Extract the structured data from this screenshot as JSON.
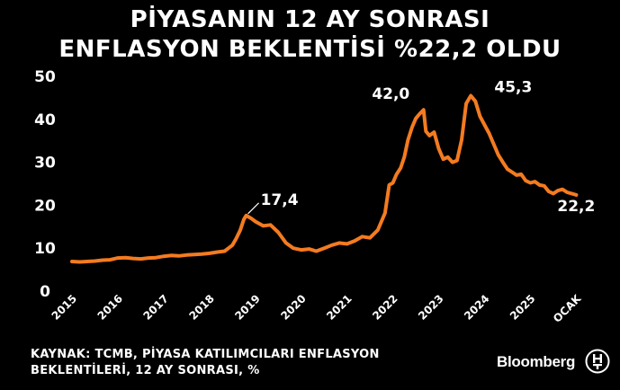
{
  "header": {
    "title_line1": "PİYASANIN 12 AY SONRASI",
    "title_line2": "ENFLASYON BEKLENTİSİ %22,2 OLDU"
  },
  "footer": {
    "source_line1": "KAYNAK: TCMB, PİYASA KATILIMCILARI ENFLASYON",
    "source_line2": "BEKLENTİLERİ, 12 AY SONRASI, %",
    "brand": "Bloomberg",
    "logo_icon": "ht-logo-icon"
  },
  "colors": {
    "background": "#000000",
    "line": "#f47b20",
    "text": "#ffffff"
  },
  "chart_data": {
    "type": "line",
    "title": "PİYASANIN 12 AY SONRASI ENFLASYON BEKLENTİSİ %22,2 OLDU",
    "xlabel": "",
    "ylabel": "",
    "ylim": [
      0,
      50
    ],
    "yticks": [
      0,
      10,
      20,
      30,
      40,
      50
    ],
    "xlim": [
      2015.0,
      2026.15
    ],
    "xticks": [
      {
        "value": 2015,
        "label": "2015"
      },
      {
        "value": 2016,
        "label": "2016"
      },
      {
        "value": 2017,
        "label": "2017"
      },
      {
        "value": 2018,
        "label": "2018"
      },
      {
        "value": 2019,
        "label": "2019"
      },
      {
        "value": 2020,
        "label": "2020"
      },
      {
        "value": 2021,
        "label": "2021"
      },
      {
        "value": 2022,
        "label": "2022"
      },
      {
        "value": 2023,
        "label": "2023"
      },
      {
        "value": 2024,
        "label": "2024"
      },
      {
        "value": 2025,
        "label": "2025"
      },
      {
        "value": 2026,
        "label": "OCAK"
      }
    ],
    "grid": false,
    "legend": "none",
    "annotations": [
      {
        "x": 2018.8,
        "y": 17.4,
        "label": "17,4"
      },
      {
        "x": 2022.72,
        "y": 42.0,
        "label": "42,0"
      },
      {
        "x": 2023.9,
        "y": 45.3,
        "label": "45,3"
      },
      {
        "x": 2026.0,
        "y": 22.2,
        "label": "22,2"
      }
    ],
    "series": [
      {
        "x": [
          2015.0,
          2015.17,
          2015.33,
          2015.5,
          2015.67,
          2015.83,
          2016.0,
          2016.17,
          2016.33,
          2016.5,
          2016.67,
          2016.83,
          2017.0,
          2017.17,
          2017.33,
          2017.5,
          2017.67,
          2017.83,
          2018.0,
          2018.17,
          2018.33,
          2018.5,
          2018.58,
          2018.67,
          2018.75,
          2018.8,
          2018.9,
          2019.0,
          2019.17,
          2019.33,
          2019.5,
          2019.67,
          2019.83,
          2020.0,
          2020.17,
          2020.33,
          2020.5,
          2020.67,
          2020.83,
          2021.0,
          2021.17,
          2021.33,
          2021.5,
          2021.67,
          2021.83,
          2021.92,
          2022.0,
          2022.08,
          2022.17,
          2022.25,
          2022.33,
          2022.42,
          2022.5,
          2022.58,
          2022.67,
          2022.72,
          2022.8,
          2022.9,
          2023.0,
          2023.1,
          2023.2,
          2023.3,
          2023.4,
          2023.5,
          2023.6,
          2023.7,
          2023.8,
          2023.9,
          2024.0,
          2024.1,
          2024.2,
          2024.3,
          2024.4,
          2024.5,
          2024.6,
          2024.7,
          2024.8,
          2024.9,
          2025.0,
          2025.1,
          2025.2,
          2025.3,
          2025.4,
          2025.5,
          2025.6,
          2025.7,
          2025.8,
          2025.9,
          2026.0
        ],
        "y": [
          6.7,
          6.6,
          6.7,
          6.8,
          7.0,
          7.1,
          7.5,
          7.6,
          7.4,
          7.3,
          7.5,
          7.6,
          7.9,
          8.1,
          8.0,
          8.2,
          8.3,
          8.4,
          8.6,
          8.9,
          9.1,
          10.5,
          12.0,
          14.0,
          16.5,
          17.4,
          16.8,
          16.0,
          15.0,
          15.2,
          13.5,
          11.0,
          9.8,
          9.4,
          9.6,
          9.1,
          9.8,
          10.5,
          11.0,
          10.8,
          11.5,
          12.5,
          12.2,
          14.0,
          18.0,
          24.5,
          25.0,
          27.0,
          28.5,
          31.0,
          35.0,
          38.0,
          40.0,
          41.0,
          42.0,
          37.0,
          36.0,
          36.8,
          33.0,
          30.5,
          31.0,
          29.8,
          30.2,
          35.0,
          43.5,
          45.3,
          44.0,
          40.5,
          38.5,
          36.5,
          34.0,
          31.5,
          29.8,
          28.2,
          27.5,
          26.8,
          27.0,
          25.5,
          25.0,
          25.3,
          24.5,
          24.3,
          23.0,
          22.5,
          23.2,
          23.5,
          22.8,
          22.5,
          22.2
        ]
      }
    ]
  }
}
